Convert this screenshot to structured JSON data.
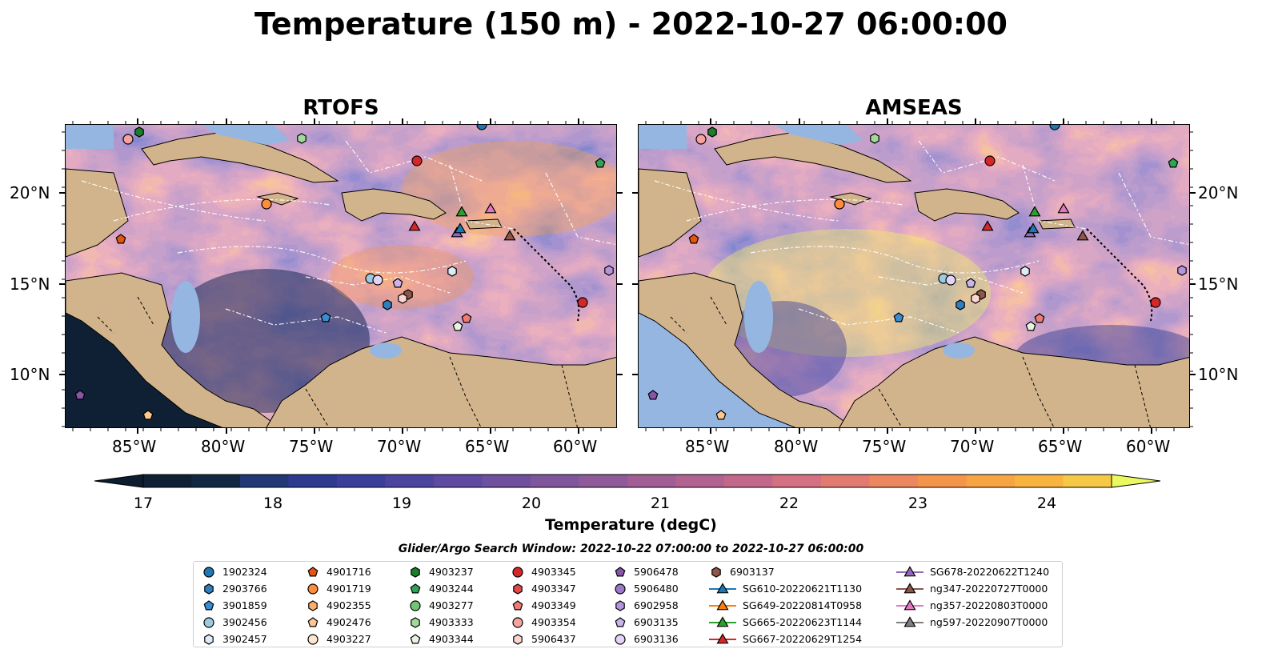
{
  "figure_title": "Temperature (150 m) - 2022-10-27 06:00:00",
  "panels": [
    {
      "title": "RTOFS"
    },
    {
      "title": "AMSEAS"
    }
  ],
  "lon_ticks": [
    "85°W",
    "80°W",
    "75°W",
    "70°W",
    "65°W",
    "60°W"
  ],
  "lat_ticks": [
    "20°N",
    "15°N",
    "10°N"
  ],
  "colorbar": {
    "label": "Temperature (degC)",
    "ticks": [
      "17",
      "18",
      "19",
      "20",
      "21",
      "22",
      "23",
      "24"
    ],
    "range": [
      16.75,
      24.75
    ],
    "colors": [
      "#0f2035",
      "#112843",
      "#213777",
      "#2e3a8f",
      "#3b3f9b",
      "#4c449f",
      "#5e4aa0",
      "#6f509e",
      "#7f569c",
      "#8f5a99",
      "#a05e95",
      "#b26290",
      "#c3688a",
      "#d47081",
      "#e17b72",
      "#ec8760",
      "#f3954b",
      "#f7a442",
      "#f8b43f",
      "#f5c946",
      "#edf45c"
    ],
    "over_color": "#eaf95f",
    "under_color": "#0b1d2e"
  },
  "search_window": "Glider/Argo Search Window: 2022-10-22 07:00:00 to 2022-10-27 06:00:00",
  "legend": {
    "items": [
      {
        "label": "1902324",
        "marker": "circle",
        "color": "#1f77b4"
      },
      {
        "label": "2903766",
        "marker": "hexagon",
        "color": "#2f7fbf"
      },
      {
        "label": "3901859",
        "marker": "pentagon",
        "color": "#3a8dd1"
      },
      {
        "label": "3902456",
        "marker": "circle",
        "color": "#9ecae1"
      },
      {
        "label": "3902457",
        "marker": "hexagon",
        "color": "#deebf7"
      },
      {
        "label": "4901716",
        "marker": "pentagon",
        "color": "#e6550d"
      },
      {
        "label": "4901719",
        "marker": "circle",
        "color": "#fd8d3c"
      },
      {
        "label": "4902355",
        "marker": "hexagon",
        "color": "#fdae6b"
      },
      {
        "label": "4902476",
        "marker": "pentagon",
        "color": "#fdc78f"
      },
      {
        "label": "4903227",
        "marker": "circle",
        "color": "#fee6ce"
      },
      {
        "label": "4903237",
        "marker": "hexagon",
        "color": "#1a7e2a"
      },
      {
        "label": "4903244",
        "marker": "pentagon",
        "color": "#31a354"
      },
      {
        "label": "4903277",
        "marker": "circle",
        "color": "#74c476"
      },
      {
        "label": "4903333",
        "marker": "hexagon",
        "color": "#a1d99b"
      },
      {
        "label": "4903344",
        "marker": "pentagon",
        "color": "#e5f5e0"
      },
      {
        "label": "4903345",
        "marker": "circle",
        "color": "#d62728"
      },
      {
        "label": "4903347",
        "marker": "hexagon",
        "color": "#e34a4a"
      },
      {
        "label": "4903349",
        "marker": "pentagon",
        "color": "#f07b72"
      },
      {
        "label": "4903354",
        "marker": "circle",
        "color": "#f4a3a0"
      },
      {
        "label": "5906437",
        "marker": "hexagon",
        "color": "#fcd5d0"
      },
      {
        "label": "5906478",
        "marker": "pentagon",
        "color": "#8856a7"
      },
      {
        "label": "5906480",
        "marker": "circle",
        "color": "#9e78c8"
      },
      {
        "label": "6902958",
        "marker": "hexagon",
        "color": "#b494dc"
      },
      {
        "label": "6903135",
        "marker": "pentagon",
        "color": "#cbb4ec"
      },
      {
        "label": "6903136",
        "marker": "circle",
        "color": "#e2d3f8"
      },
      {
        "label": "6903137",
        "marker": "hexagon",
        "color": "#8c564b"
      },
      {
        "label": "SG610-20220621T1130",
        "marker": "triangle-line",
        "color": "#1f77b4"
      },
      {
        "label": "SG649-20220814T0958",
        "marker": "triangle-line",
        "color": "#ff7f0e"
      },
      {
        "label": "SG665-20220623T1144",
        "marker": "triangle-line",
        "color": "#2ca02c"
      },
      {
        "label": "SG667-20220629T1254",
        "marker": "triangle-line",
        "color": "#d62728"
      },
      {
        "label": "SG678-20220622T1240",
        "marker": "triangle-line",
        "color": "#9467bd"
      },
      {
        "label": "ng347-20220727T0000",
        "marker": "triangle-line",
        "color": "#8c564b"
      },
      {
        "label": "ng357-20220803T0000",
        "marker": "triangle-line",
        "color": "#e377c2"
      },
      {
        "label": "ng597-20220907T0000",
        "marker": "triangle-line",
        "color": "#7f7f7f"
      }
    ]
  },
  "map_colors": {
    "land": "#d2b48c",
    "shelf": "#95b6e0",
    "coast": "#000000",
    "contour": "#ffffff"
  }
}
